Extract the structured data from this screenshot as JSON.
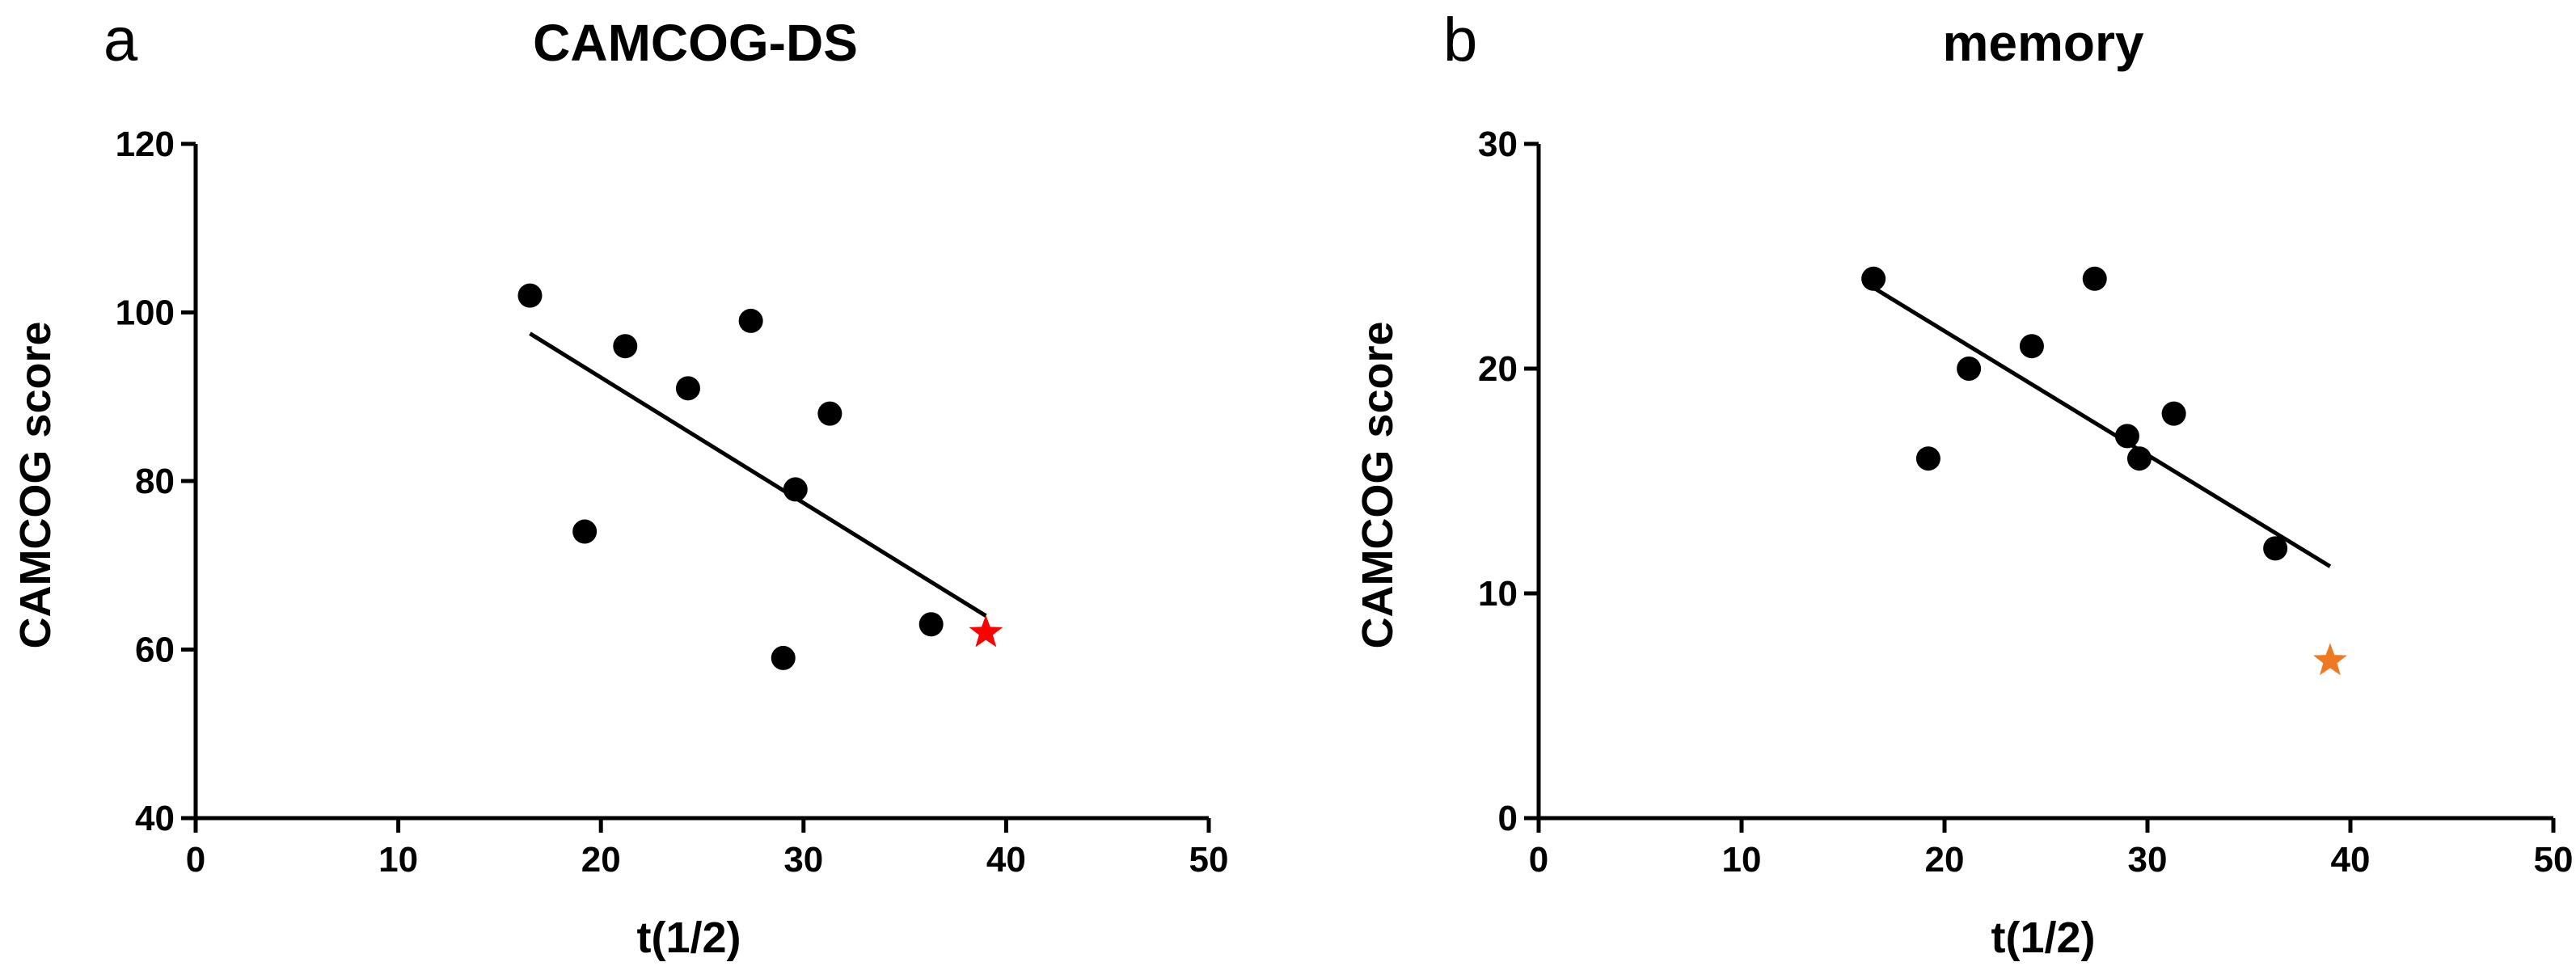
{
  "chart_data": [
    {
      "panel": "a",
      "type": "scatter",
      "title": "CAMCOG-DS",
      "xlabel": "t(1/2)",
      "ylabel": "CAMCOG score",
      "xlim": [
        0,
        50
      ],
      "ylim": [
        40,
        120
      ],
      "xticks": [
        0,
        10,
        20,
        30,
        40,
        50
      ],
      "yticks": [
        40,
        60,
        80,
        100,
        120
      ],
      "points": [
        {
          "x": 16.5,
          "y": 102
        },
        {
          "x": 19.2,
          "y": 74
        },
        {
          "x": 21.2,
          "y": 96
        },
        {
          "x": 24.3,
          "y": 91
        },
        {
          "x": 27.4,
          "y": 99
        },
        {
          "x": 29.0,
          "y": 59
        },
        {
          "x": 29.6,
          "y": 79
        },
        {
          "x": 31.3,
          "y": 88
        },
        {
          "x": 36.3,
          "y": 63
        }
      ],
      "regression_line": {
        "x": [
          16.5,
          39
        ],
        "y": [
          97.5,
          64
        ]
      },
      "highlight": {
        "x": 39,
        "y": 62,
        "marker": "star",
        "color": "#ff0000"
      }
    },
    {
      "panel": "b",
      "type": "scatter",
      "title": "memory",
      "xlabel": "t(1/2)",
      "ylabel": "CAMCOG score",
      "xlim": [
        0,
        50
      ],
      "ylim": [
        0,
        30
      ],
      "xticks": [
        0,
        10,
        20,
        30,
        40,
        50
      ],
      "yticks": [
        0,
        10,
        20,
        30
      ],
      "points": [
        {
          "x": 16.5,
          "y": 24
        },
        {
          "x": 19.2,
          "y": 16
        },
        {
          "x": 21.2,
          "y": 20
        },
        {
          "x": 24.3,
          "y": 21
        },
        {
          "x": 27.4,
          "y": 24
        },
        {
          "x": 29.0,
          "y": 17
        },
        {
          "x": 29.6,
          "y": 16
        },
        {
          "x": 31.3,
          "y": 18
        },
        {
          "x": 36.3,
          "y": 12
        }
      ],
      "regression_line": {
        "x": [
          16.5,
          39
        ],
        "y": [
          23.6,
          11.2
        ]
      },
      "highlight": {
        "x": 39,
        "y": 7,
        "marker": "star",
        "color": "#f07820"
      }
    }
  ]
}
